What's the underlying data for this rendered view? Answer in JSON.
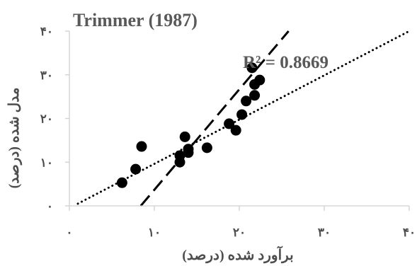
{
  "chart_data": {
    "type": "scatter",
    "title": "Trimmer (1987)",
    "xlabel": "برآورد شده (درصد)",
    "ylabel": "مدل شده (درصد)",
    "xlim": [
      0,
      40
    ],
    "ylim": [
      0,
      40
    ],
    "x_ticks": [
      0,
      10,
      20,
      30,
      40
    ],
    "y_ticks": [
      0,
      10,
      20,
      30,
      40
    ],
    "x_tick_labels": [
      "۰",
      "۱۰",
      "۲۰",
      "۳۰",
      "۴۰"
    ],
    "y_tick_labels": [
      "۰",
      "۱۰",
      "۲۰",
      "۳۰",
      "۴۰"
    ],
    "grid": false,
    "annotation": "R² = 0.8669",
    "marker_color": "#000000",
    "points": [
      {
        "x": 6.2,
        "y": 5.3
      },
      {
        "x": 7.8,
        "y": 8.4
      },
      {
        "x": 8.5,
        "y": 13.6
      },
      {
        "x": 13.0,
        "y": 10.0
      },
      {
        "x": 13.0,
        "y": 11.5
      },
      {
        "x": 13.6,
        "y": 15.8
      },
      {
        "x": 14.0,
        "y": 12.2
      },
      {
        "x": 14.0,
        "y": 13.0
      },
      {
        "x": 16.2,
        "y": 13.3
      },
      {
        "x": 18.8,
        "y": 18.8
      },
      {
        "x": 19.6,
        "y": 17.3
      },
      {
        "x": 20.3,
        "y": 20.9
      },
      {
        "x": 20.8,
        "y": 24.0
      },
      {
        "x": 21.5,
        "y": 31.6
      },
      {
        "x": 21.8,
        "y": 25.3
      },
      {
        "x": 21.8,
        "y": 27.8
      },
      {
        "x": 22.4,
        "y": 28.8
      }
    ],
    "lines": [
      {
        "style": "dotted",
        "from": [
          1.0,
          0.5
        ],
        "to": [
          40.0,
          40.0
        ]
      },
      {
        "style": "dashed",
        "from": [
          8.4,
          0.0
        ],
        "to": [
          25.8,
          40.0
        ]
      }
    ]
  }
}
